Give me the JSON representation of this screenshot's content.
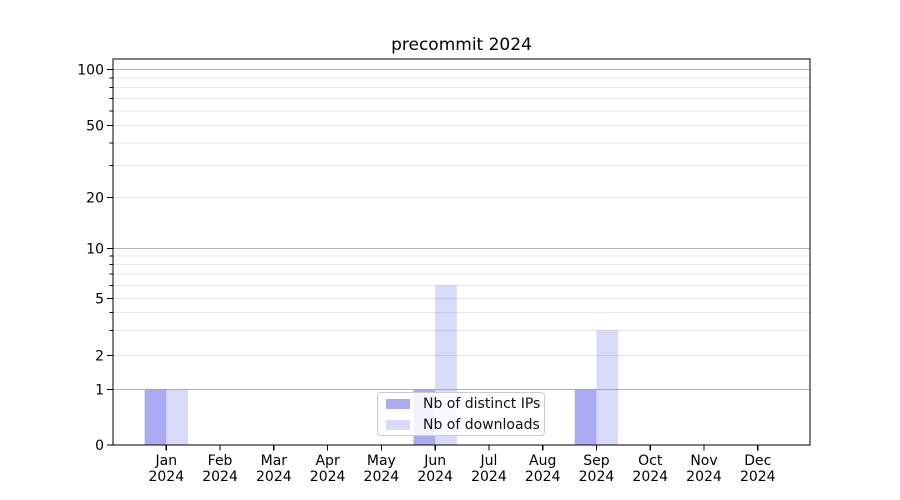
{
  "chart_data": {
    "type": "bar",
    "title": "precommit 2024",
    "categories": [
      {
        "month": "Jan",
        "year": "2024"
      },
      {
        "month": "Feb",
        "year": "2024"
      },
      {
        "month": "Mar",
        "year": "2024"
      },
      {
        "month": "Apr",
        "year": "2024"
      },
      {
        "month": "May",
        "year": "2024"
      },
      {
        "month": "Jun",
        "year": "2024"
      },
      {
        "month": "Jul",
        "year": "2024"
      },
      {
        "month": "Aug",
        "year": "2024"
      },
      {
        "month": "Sep",
        "year": "2024"
      },
      {
        "month": "Oct",
        "year": "2024"
      },
      {
        "month": "Nov",
        "year": "2024"
      },
      {
        "month": "Dec",
        "year": "2024"
      }
    ],
    "series": [
      {
        "name": "Nb of distinct IPs",
        "color": "rgba(120,120,235,0.62)",
        "values": [
          1,
          0,
          0,
          0,
          0,
          1,
          0,
          0,
          1,
          0,
          0,
          0
        ]
      },
      {
        "name": "Nb of downloads",
        "color": "rgba(120,120,235,0.28)",
        "values": [
          1,
          0,
          0,
          0,
          0,
          6,
          0,
          0,
          3,
          0,
          0,
          0
        ]
      }
    ],
    "y_axis": {
      "ticks": [
        0,
        1,
        2,
        5,
        10,
        20,
        50,
        100
      ],
      "minor_gridlines": [
        3,
        4,
        6,
        7,
        8,
        9,
        30,
        40,
        60,
        70,
        80,
        90
      ],
      "range": [
        0,
        120
      ],
      "scale": "log-like with linear 0-1 segment"
    },
    "xlabel": "",
    "ylabel": "",
    "grid": true,
    "legend_position": "bottom-center",
    "colors": {
      "grid_decade": "#b4b4b4",
      "grid_minor": "#e6e6e6",
      "spine": "#000000",
      "tick_text": "#000000"
    }
  }
}
